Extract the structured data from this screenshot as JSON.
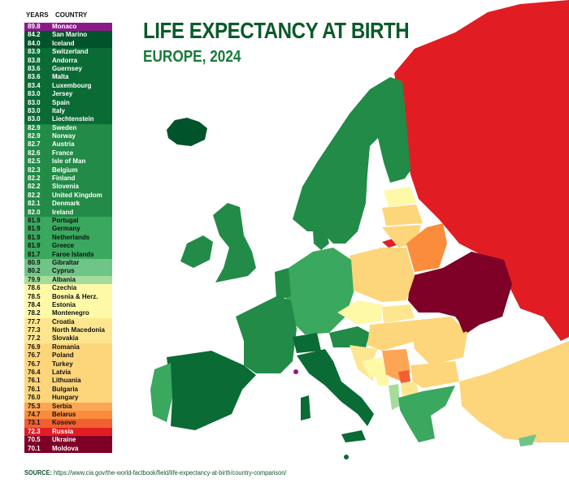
{
  "title": "LIFE EXPECTANCY AT BIRTH",
  "subtitle": "EUROPE, 2024",
  "legend": {
    "col_years": "YEARS",
    "col_country": "COUNTRY"
  },
  "source_label": "SOURCE:",
  "source_url": "https://www.cia.gov/the-world-factbook/field/life-expectancy-at-birth/country-comparison/",
  "colors": {
    "title": "#0b5a2a",
    "subtitle": "#1a7a3a",
    "c_89": "#8b1a89",
    "c_84": "#00532a",
    "c_83": "#0a6b35",
    "c_82": "#218b47",
    "c_81": "#3aa85e",
    "c_80": "#6fc487",
    "c_79": "#a6dc9b",
    "c_78": "#fdf9a6",
    "c_77": "#fde68f",
    "c_76": "#fdd57a",
    "c_75": "#fca655",
    "c_74": "#fb8c3c",
    "c_73": "#f26031",
    "c_72": "#e11d23",
    "c_70": "#7f0027"
  },
  "chart_data": {
    "type": "table",
    "title": "LIFE EXPECTANCY AT BIRTH",
    "subtitle": "EUROPE, 2024",
    "columns": [
      "YEARS",
      "COUNTRY"
    ],
    "unit": "years",
    "rows": [
      {
        "value": 89.8,
        "country": "Monaco",
        "color": "#8b1a89",
        "text": "#ffffff"
      },
      {
        "value": 84.2,
        "country": "San Marino",
        "color": "#00532a",
        "text": "#ffffff"
      },
      {
        "value": 84.0,
        "country": "Iceland",
        "color": "#00532a",
        "text": "#ffffff"
      },
      {
        "value": 83.9,
        "country": "Switzerland",
        "color": "#0a6b35",
        "text": "#ffffff"
      },
      {
        "value": 83.8,
        "country": "Andorra",
        "color": "#0a6b35",
        "text": "#ffffff"
      },
      {
        "value": 83.6,
        "country": "Guernsey",
        "color": "#0a6b35",
        "text": "#ffffff"
      },
      {
        "value": 83.6,
        "country": "Malta",
        "color": "#0a6b35",
        "text": "#ffffff"
      },
      {
        "value": 83.4,
        "country": "Luxembourg",
        "color": "#0a6b35",
        "text": "#ffffff"
      },
      {
        "value": 83.0,
        "country": "Jersey",
        "color": "#0a6b35",
        "text": "#ffffff"
      },
      {
        "value": 83.0,
        "country": "Spain",
        "color": "#0a6b35",
        "text": "#ffffff"
      },
      {
        "value": 83.0,
        "country": "Italy",
        "color": "#0a6b35",
        "text": "#ffffff"
      },
      {
        "value": 83.0,
        "country": "Liechtenstein",
        "color": "#0a6b35",
        "text": "#ffffff"
      },
      {
        "value": 82.9,
        "country": "Sweden",
        "color": "#218b47",
        "text": "#ffffff"
      },
      {
        "value": 82.9,
        "country": "Norway",
        "color": "#218b47",
        "text": "#ffffff"
      },
      {
        "value": 82.7,
        "country": "Austria",
        "color": "#218b47",
        "text": "#ffffff"
      },
      {
        "value": 82.6,
        "country": "France",
        "color": "#218b47",
        "text": "#ffffff"
      },
      {
        "value": 82.5,
        "country": "Isle of Man",
        "color": "#218b47",
        "text": "#ffffff"
      },
      {
        "value": 82.3,
        "country": "Belgium",
        "color": "#218b47",
        "text": "#ffffff"
      },
      {
        "value": 82.2,
        "country": "Finland",
        "color": "#218b47",
        "text": "#ffffff"
      },
      {
        "value": 82.2,
        "country": "Slovenia",
        "color": "#218b47",
        "text": "#ffffff"
      },
      {
        "value": 82.2,
        "country": "United Kingdom",
        "color": "#218b47",
        "text": "#ffffff"
      },
      {
        "value": 82.1,
        "country": "Denmark",
        "color": "#218b47",
        "text": "#ffffff"
      },
      {
        "value": 82.0,
        "country": "Ireland",
        "color": "#218b47",
        "text": "#ffffff"
      },
      {
        "value": 81.9,
        "country": "Portugal",
        "color": "#3aa85e",
        "text": "#111111"
      },
      {
        "value": 81.9,
        "country": "Germany",
        "color": "#3aa85e",
        "text": "#111111"
      },
      {
        "value": 81.9,
        "country": "Netherlands",
        "color": "#3aa85e",
        "text": "#111111"
      },
      {
        "value": 81.9,
        "country": "Greece",
        "color": "#3aa85e",
        "text": "#111111"
      },
      {
        "value": 81.7,
        "country": "Faroe Islands",
        "color": "#3aa85e",
        "text": "#111111"
      },
      {
        "value": 80.9,
        "country": "Gibraltar",
        "color": "#6fc487",
        "text": "#111111"
      },
      {
        "value": 80.2,
        "country": "Cyprus",
        "color": "#6fc487",
        "text": "#111111"
      },
      {
        "value": 79.9,
        "country": "Albania",
        "color": "#a6dc9b",
        "text": "#111111"
      },
      {
        "value": 78.6,
        "country": "Czechia",
        "color": "#fdf9a6",
        "text": "#111111"
      },
      {
        "value": 78.5,
        "country": "Bosnia & Herz.",
        "color": "#fdf9a6",
        "text": "#111111"
      },
      {
        "value": 78.4,
        "country": "Estonia",
        "color": "#fdf9a6",
        "text": "#111111"
      },
      {
        "value": 78.2,
        "country": "Montenegro",
        "color": "#fdf9a6",
        "text": "#111111"
      },
      {
        "value": 77.7,
        "country": "Croatia",
        "color": "#fde68f",
        "text": "#111111"
      },
      {
        "value": 77.3,
        "country": "North Macedonia",
        "color": "#fde68f",
        "text": "#111111"
      },
      {
        "value": 77.2,
        "country": "Slovakia",
        "color": "#fde68f",
        "text": "#111111"
      },
      {
        "value": 76.9,
        "country": "Romania",
        "color": "#fdd57a",
        "text": "#111111"
      },
      {
        "value": 76.7,
        "country": "Poland",
        "color": "#fdd57a",
        "text": "#111111"
      },
      {
        "value": 76.7,
        "country": "Turkey",
        "color": "#fdd57a",
        "text": "#111111"
      },
      {
        "value": 76.4,
        "country": "Latvia",
        "color": "#fdd57a",
        "text": "#111111"
      },
      {
        "value": 76.1,
        "country": "Lithuania",
        "color": "#fdd57a",
        "text": "#111111"
      },
      {
        "value": 76.1,
        "country": "Bulgaria",
        "color": "#fdd57a",
        "text": "#111111"
      },
      {
        "value": 76.0,
        "country": "Hungary",
        "color": "#fdd57a",
        "text": "#111111"
      },
      {
        "value": 75.3,
        "country": "Serbia",
        "color": "#fca655",
        "text": "#111111"
      },
      {
        "value": 74.7,
        "country": "Belarus",
        "color": "#fb8c3c",
        "text": "#111111"
      },
      {
        "value": 73.1,
        "country": "Kosovo",
        "color": "#f26031",
        "text": "#111111"
      },
      {
        "value": 72.3,
        "country": "Russia",
        "color": "#e11d23",
        "text": "#ffffff"
      },
      {
        "value": 70.5,
        "country": "Ukraine",
        "color": "#7f0027",
        "text": "#ffffff"
      },
      {
        "value": 70.1,
        "country": "Moldova",
        "color": "#7f0027",
        "text": "#ffffff"
      }
    ],
    "map": "Choropleth map of Europe colored by life expectancy at birth"
  }
}
